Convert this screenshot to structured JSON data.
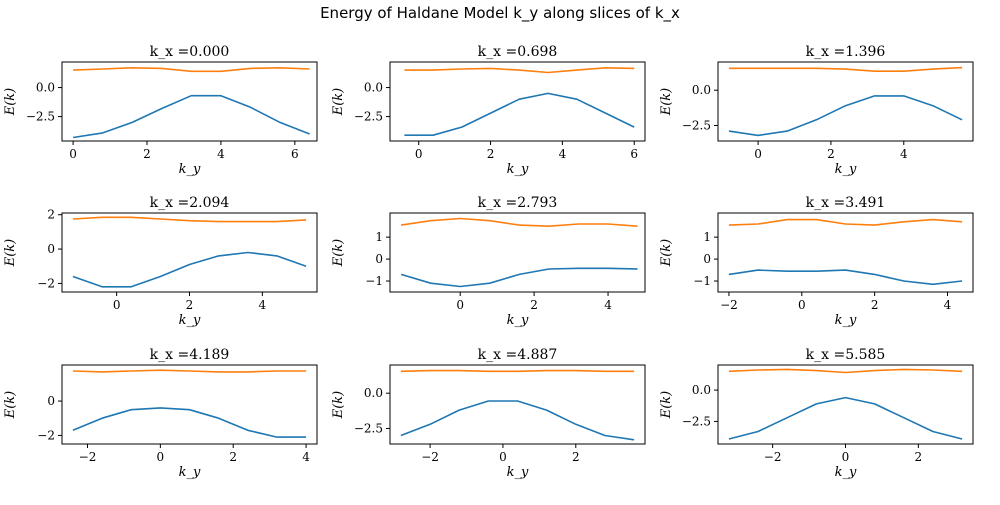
{
  "figure": {
    "title": "Energy of Haldane Model k_y along slices of k_x",
    "colors": {
      "lower_band": "#1f77b4",
      "upper_band": "#ff7f0e",
      "axes": "#000000"
    }
  },
  "chart_data": [
    {
      "type": "line",
      "title": "k_x =0.000",
      "xlabel": "k_y",
      "ylabel": "E(k)",
      "xlim": [
        -0.3,
        6.6
      ],
      "ylim": [
        -4.6,
        2.2
      ],
      "xticks": [
        0,
        2,
        4,
        6
      ],
      "xtick_labels": [
        "0",
        "2",
        "4",
        "6"
      ],
      "yticks": [
        0.0,
        -2.5
      ],
      "ytick_labels": [
        "0.0",
        "−2.5"
      ],
      "x": [
        0.0,
        0.8,
        1.6,
        2.4,
        3.2,
        4.0,
        4.8,
        5.6,
        6.4
      ],
      "series": [
        {
          "values": [
            -4.3,
            -3.9,
            -3.0,
            -1.8,
            -0.7,
            -0.7,
            -1.7,
            -3.0,
            -4.0
          ]
        },
        {
          "values": [
            1.5,
            1.6,
            1.7,
            1.65,
            1.4,
            1.4,
            1.65,
            1.7,
            1.6
          ]
        }
      ]
    },
    {
      "type": "line",
      "title": "k_x =0.698",
      "xlabel": "k_y",
      "ylabel": "E(k)",
      "xlim": [
        -0.8,
        6.3
      ],
      "ylim": [
        -4.6,
        2.2
      ],
      "xticks": [
        0,
        2,
        4,
        6
      ],
      "xtick_labels": [
        "0",
        "2",
        "4",
        "6"
      ],
      "yticks": [
        0.0,
        -2.5
      ],
      "ytick_labels": [
        "0.0",
        "−2.5"
      ],
      "x": [
        -0.4,
        0.4,
        1.2,
        2.0,
        2.8,
        3.6,
        4.4,
        5.2,
        6.0
      ],
      "series": [
        {
          "values": [
            -4.1,
            -4.1,
            -3.4,
            -2.2,
            -1.0,
            -0.5,
            -1.0,
            -2.2,
            -3.4
          ]
        },
        {
          "values": [
            1.5,
            1.5,
            1.6,
            1.65,
            1.5,
            1.3,
            1.5,
            1.7,
            1.65
          ]
        }
      ]
    },
    {
      "type": "line",
      "title": "k_x =1.396",
      "xlabel": "k_y",
      "ylabel": "E(k)",
      "xlim": [
        -1.1,
        5.9
      ],
      "ylim": [
        -3.6,
        2.0
      ],
      "xticks": [
        0,
        2,
        4
      ],
      "xtick_labels": [
        "0",
        "2",
        "4"
      ],
      "yticks": [
        0.0,
        -2.5
      ],
      "ytick_labels": [
        "0.0",
        "−2.5"
      ],
      "x": [
        -0.8,
        0.0,
        0.8,
        1.6,
        2.4,
        3.2,
        4.0,
        4.8,
        5.6
      ],
      "series": [
        {
          "values": [
            -2.9,
            -3.2,
            -2.9,
            -2.1,
            -1.1,
            -0.4,
            -0.4,
            -1.1,
            -2.1
          ]
        },
        {
          "values": [
            1.55,
            1.55,
            1.55,
            1.55,
            1.5,
            1.35,
            1.35,
            1.5,
            1.6
          ]
        }
      ]
    },
    {
      "type": "line",
      "title": "k_x =2.094",
      "xlabel": "k_y",
      "ylabel": "E(k)",
      "xlim": [
        -1.5,
        5.5
      ],
      "ylim": [
        -2.5,
        2.1
      ],
      "xticks": [
        0,
        2,
        4
      ],
      "xtick_labels": [
        "0",
        "2",
        "4"
      ],
      "yticks": [
        2,
        0,
        -2
      ],
      "ytick_labels": [
        "2",
        "0",
        "−2"
      ],
      "x": [
        -1.2,
        -0.4,
        0.4,
        1.2,
        2.0,
        2.8,
        3.6,
        4.4,
        5.2
      ],
      "series": [
        {
          "values": [
            -1.6,
            -2.2,
            -2.2,
            -1.6,
            -0.9,
            -0.4,
            -0.2,
            -0.4,
            -1.0
          ]
        },
        {
          "values": [
            1.75,
            1.85,
            1.85,
            1.75,
            1.65,
            1.6,
            1.6,
            1.6,
            1.7
          ]
        }
      ]
    },
    {
      "type": "line",
      "title": "k_x =2.793",
      "xlabel": "k_y",
      "ylabel": "E(k)",
      "xlim": [
        -1.9,
        5.0
      ],
      "ylim": [
        -1.5,
        2.1
      ],
      "xticks": [
        0,
        2,
        4
      ],
      "xtick_labels": [
        "0",
        "2",
        "4"
      ],
      "yticks": [
        1,
        0,
        -1
      ],
      "ytick_labels": [
        "1",
        "0",
        "−1"
      ],
      "x": [
        -1.6,
        -0.8,
        0.0,
        0.8,
        1.6,
        2.4,
        3.2,
        4.0,
        4.8
      ],
      "series": [
        {
          "values": [
            -0.7,
            -1.1,
            -1.25,
            -1.1,
            -0.7,
            -0.45,
            -0.42,
            -0.42,
            -0.45
          ]
        },
        {
          "values": [
            1.55,
            1.75,
            1.85,
            1.75,
            1.55,
            1.5,
            1.6,
            1.6,
            1.5
          ]
        }
      ]
    },
    {
      "type": "line",
      "title": "k_x =3.491",
      "xlabel": "k_y",
      "ylabel": "E(k)",
      "xlim": [
        -2.3,
        4.7
      ],
      "ylim": [
        -1.5,
        2.1
      ],
      "xticks": [
        -2,
        0,
        2,
        4
      ],
      "xtick_labels": [
        "−2",
        "0",
        "2",
        "4"
      ],
      "yticks": [
        1,
        0,
        -1
      ],
      "ytick_labels": [
        "1",
        "0",
        "−1"
      ],
      "x": [
        -2.0,
        -1.2,
        -0.4,
        0.4,
        1.2,
        2.0,
        2.8,
        3.6,
        4.4
      ],
      "series": [
        {
          "values": [
            -0.7,
            -0.5,
            -0.55,
            -0.55,
            -0.5,
            -0.7,
            -1.0,
            -1.15,
            -1.0
          ]
        },
        {
          "values": [
            1.55,
            1.6,
            1.8,
            1.8,
            1.6,
            1.55,
            1.7,
            1.8,
            1.7
          ]
        }
      ]
    },
    {
      "type": "line",
      "title": "k_x =4.189",
      "xlabel": "k_y",
      "ylabel": "E(k)",
      "xlim": [
        -2.7,
        4.3
      ],
      "ylim": [
        -2.5,
        2.1
      ],
      "xticks": [
        -2,
        0,
        2,
        4
      ],
      "xtick_labels": [
        "−2",
        "0",
        "2",
        "4"
      ],
      "yticks": [
        0,
        -2
      ],
      "ytick_labels": [
        "0",
        "−2"
      ],
      "x": [
        -2.4,
        -1.6,
        -0.8,
        0.0,
        0.8,
        1.6,
        2.4,
        3.2,
        4.0
      ],
      "series": [
        {
          "values": [
            -1.7,
            -1.0,
            -0.5,
            -0.4,
            -0.5,
            -1.0,
            -1.7,
            -2.1,
            -2.1
          ]
        },
        {
          "values": [
            1.75,
            1.7,
            1.75,
            1.8,
            1.75,
            1.7,
            1.7,
            1.75,
            1.75
          ]
        }
      ]
    },
    {
      "type": "line",
      "title": "k_x =4.887",
      "xlabel": "k_y",
      "ylabel": "E(k)",
      "xlim": [
        -3.1,
        3.9
      ],
      "ylim": [
        -3.6,
        2.0
      ],
      "xticks": [
        -2,
        0,
        2
      ],
      "xtick_labels": [
        "−2",
        "0",
        "2"
      ],
      "yticks": [
        0.0,
        -2.5
      ],
      "ytick_labels": [
        "0.0",
        "−2.5"
      ],
      "x": [
        -2.8,
        -2.0,
        -1.2,
        -0.4,
        0.4,
        1.2,
        2.0,
        2.8,
        3.6
      ],
      "series": [
        {
          "values": [
            -3.0,
            -2.2,
            -1.2,
            -0.55,
            -0.55,
            -1.2,
            -2.2,
            -3.0,
            -3.3
          ]
        },
        {
          "values": [
            1.55,
            1.6,
            1.6,
            1.55,
            1.55,
            1.6,
            1.6,
            1.55,
            1.55
          ]
        }
      ]
    },
    {
      "type": "line",
      "title": "k_x =5.585",
      "xlabel": "k_y",
      "ylabel": "E(k)",
      "xlim": [
        -3.5,
        3.5
      ],
      "ylim": [
        -4.3,
        2.0
      ],
      "xticks": [
        -2,
        0,
        2
      ],
      "xtick_labels": [
        "−2",
        "0",
        "2"
      ],
      "yticks": [
        0.0,
        -2.5
      ],
      "ytick_labels": [
        "0.0",
        "−2.5"
      ],
      "x": [
        -3.2,
        -2.4,
        -1.6,
        -0.8,
        0.0,
        0.8,
        1.6,
        2.4,
        3.2
      ],
      "series": [
        {
          "values": [
            -3.9,
            -3.3,
            -2.2,
            -1.1,
            -0.6,
            -1.1,
            -2.2,
            -3.3,
            -3.9
          ]
        },
        {
          "values": [
            1.5,
            1.6,
            1.65,
            1.55,
            1.4,
            1.55,
            1.65,
            1.6,
            1.5
          ]
        }
      ]
    }
  ]
}
